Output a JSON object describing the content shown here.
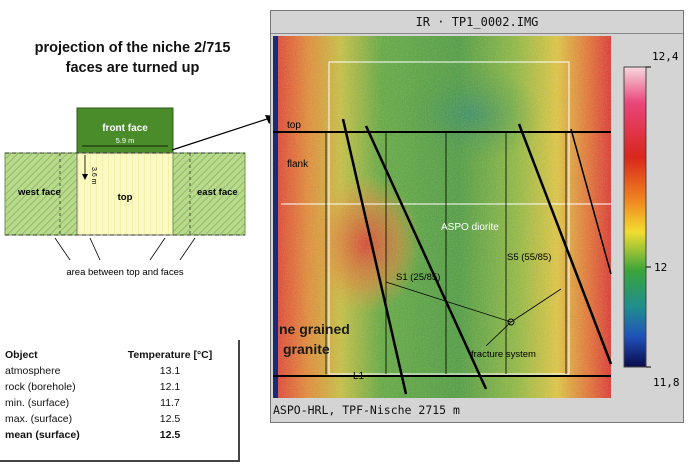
{
  "projection": {
    "title_line1": "projection of the niche 2/715",
    "title_line2": "faces are turned up",
    "front_face": "front face",
    "width_dim": "5.9 m",
    "height_dim": "3.6 m",
    "west_face": "west face",
    "top": "top",
    "east_face": "east face",
    "area_label": "area between top and faces"
  },
  "table": {
    "header_object": "Object",
    "header_temp": "Temperature [°C]",
    "rows": [
      {
        "object": "atmosphere",
        "value": "13.1"
      },
      {
        "object": "rock (borehole)",
        "value": "12.1"
      },
      {
        "object": "min. (surface)",
        "value": "11.7"
      },
      {
        "object": "max. (surface)",
        "value": "12.5"
      },
      {
        "object": "mean (surface)",
        "value": "12.5"
      }
    ]
  },
  "ir_image": {
    "title": "IR · TP1_0002.IMG",
    "footer": "ASPO-HRL, TPF-Nische 2715 m",
    "labels": {
      "top": "top",
      "flank": "flank",
      "aspo_diorite": "ASPO diorite",
      "s1": "S1 (25/85)",
      "s5": "S5 (55/85)",
      "fine_granite_1": "ne grained",
      "fine_granite_2": "granite",
      "fracture_system": "fracture system",
      "l1": "L1"
    },
    "scale": {
      "max": "12,4 °C",
      "mid": "12",
      "min": "11,8"
    }
  },
  "colors": {
    "front_face_green": "#4a8c2a",
    "side_face_green": "#a9cf7f",
    "top_yellow": "#fbf9c4",
    "ir_background": "#d4d4d4"
  }
}
